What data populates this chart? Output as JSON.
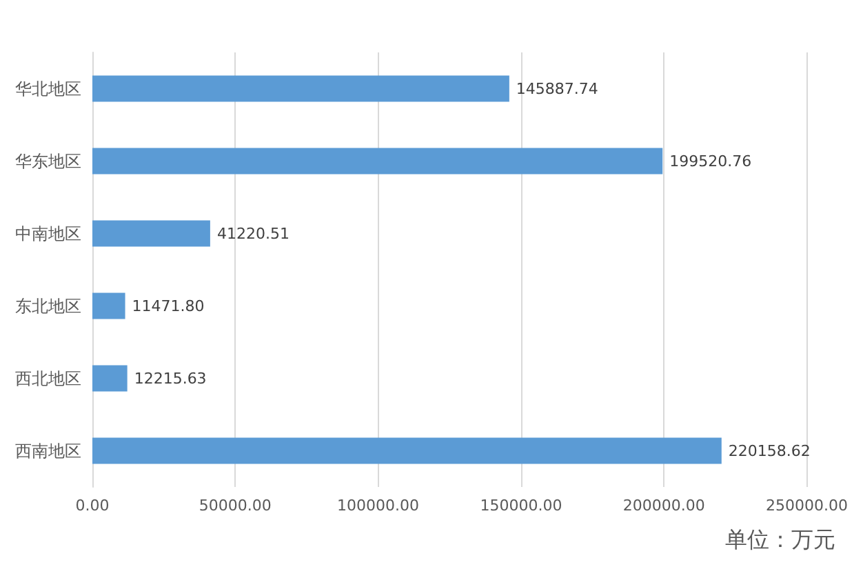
{
  "chart_data": {
    "type": "bar",
    "orientation": "horizontal",
    "categories": [
      "华北地区",
      "华东地区",
      "中南地区",
      "东北地区",
      "西北地区",
      "西南地区"
    ],
    "values": [
      145887.74,
      199520.76,
      41220.51,
      11471.8,
      12215.63,
      220158.62
    ],
    "value_labels": [
      "145887.74",
      "199520.76",
      "41220.51",
      "11471.80",
      "12215.63",
      "220158.62"
    ],
    "color": "#5b9bd5",
    "xlim": [
      0,
      250000
    ],
    "xticks": [
      {
        "value": 0,
        "label": "0.00"
      },
      {
        "value": 50000,
        "label": "50000.00"
      },
      {
        "value": 100000,
        "label": "100000.00"
      },
      {
        "value": 150000,
        "label": "150000.00"
      },
      {
        "value": 200000,
        "label": "200000.00"
      },
      {
        "value": 250000,
        "label": "250000.00"
      }
    ],
    "grid": "x",
    "annotations": [
      "单位：万元"
    ]
  }
}
